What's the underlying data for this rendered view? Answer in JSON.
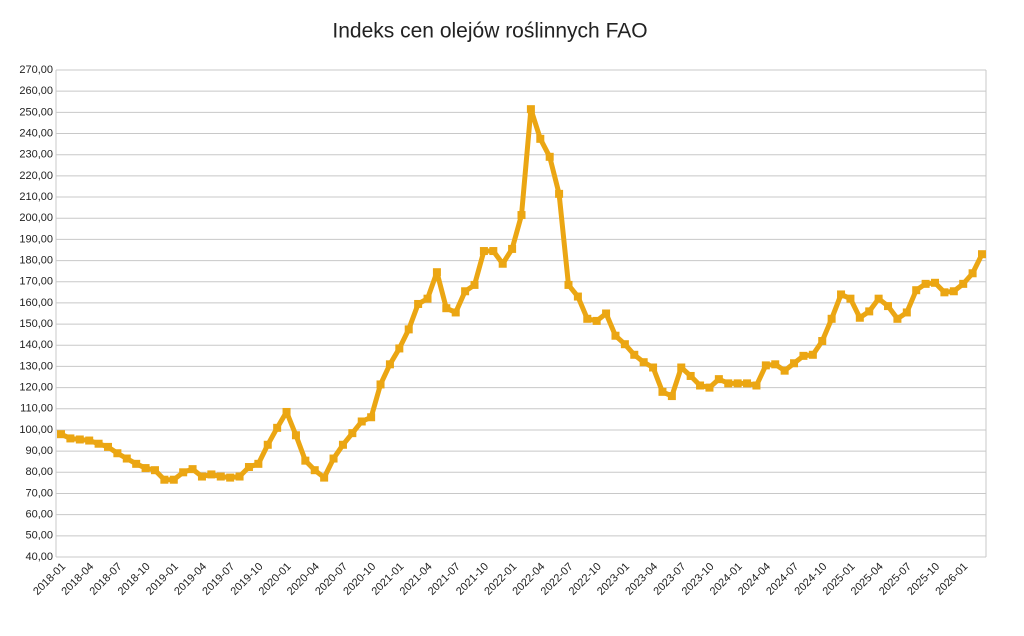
{
  "chart_data": {
    "type": "line",
    "title": "Indeks cen olejów roślinnych FAO",
    "categories": [
      "2018-01",
      null,
      null,
      "2018-04",
      null,
      null,
      "2018-07",
      null,
      null,
      "2018-10",
      null,
      null,
      "2019-01",
      null,
      null,
      "2019-04",
      null,
      null,
      "2019-07",
      null,
      null,
      "2019-10",
      null,
      null,
      "2020-01",
      null,
      null,
      "2020-04",
      null,
      null,
      "2020-07",
      null,
      null,
      "2020-10",
      null,
      null,
      "2021-01",
      null,
      null,
      "2021-04",
      null,
      null,
      "2021-07",
      null,
      null,
      "2021-10",
      null,
      null,
      "2022-01",
      null,
      null,
      "2022-04",
      null,
      null,
      "2022-07",
      null,
      null,
      "2022-10",
      null,
      null,
      "2023-01",
      null,
      null,
      "2023-04",
      null,
      null,
      "2023-07",
      null,
      null,
      "2023-10",
      null,
      null,
      "2024-01",
      null,
      null,
      "2024-04",
      null,
      null,
      "2024-07",
      null,
      null,
      "2024-10",
      null,
      null,
      "2025-01",
      null,
      null,
      "2025-04",
      null,
      null,
      "2025-07",
      null,
      null,
      "2025-10",
      null,
      null,
      "2026-01",
      null,
      null
    ],
    "series": [
      {
        "color": "#eba613",
        "values": [
          98,
          96,
          95.5,
          95,
          93.5,
          92,
          89,
          86.5,
          84,
          82,
          81,
          76.5,
          76.5,
          80,
          81.5,
          78,
          79,
          78,
          77.5,
          78,
          82.5,
          84,
          93,
          101,
          108.5,
          97.5,
          85.5,
          81,
          77.5,
          86.5,
          93,
          98.5,
          104,
          106,
          121.5,
          131,
          138.5,
          147.5,
          159.5,
          162,
          174.5,
          157.5,
          155.5,
          165.5,
          168.5,
          184.5,
          184.5,
          178.5,
          185.5,
          201.5,
          251.5,
          237.5,
          229,
          211.5,
          168.5,
          163,
          152.5,
          151.5,
          155,
          144.5,
          140.5,
          135.5,
          132,
          129.5,
          118,
          116,
          129.5,
          125.5,
          121,
          120,
          124,
          122,
          122,
          122,
          121,
          130.5,
          131,
          128,
          131.5,
          135,
          135.5,
          142,
          152.5,
          164,
          162,
          153,
          156,
          162,
          158.5,
          152.5,
          155.5,
          166,
          169,
          169.5,
          165,
          165.5,
          169,
          174,
          183
        ]
      }
    ],
    "ylim": [
      40,
      270
    ],
    "yticks": [
      {
        "value": 40,
        "label": "40,00"
      },
      {
        "value": 50,
        "label": "50,00"
      },
      {
        "value": 60,
        "label": "60,00"
      },
      {
        "value": 70,
        "label": "70,00"
      },
      {
        "value": 80,
        "label": "80,00"
      },
      {
        "value": 90,
        "label": "90,00"
      },
      {
        "value": 100,
        "label": "100,00"
      },
      {
        "value": 110,
        "label": "110,00"
      },
      {
        "value": 120,
        "label": "120,00"
      },
      {
        "value": 130,
        "label": "130,00"
      },
      {
        "value": 140,
        "label": "140,00"
      },
      {
        "value": 150,
        "label": "150,00"
      },
      {
        "value": 160,
        "label": "160,00"
      },
      {
        "value": 170,
        "label": "170,00"
      },
      {
        "value": 180,
        "label": "180,00"
      },
      {
        "value": 190,
        "label": "190,00"
      },
      {
        "value": 200,
        "label": "200,00"
      },
      {
        "value": 210,
        "label": "210,00"
      },
      {
        "value": 220,
        "label": "220,00"
      },
      {
        "value": 230,
        "label": "230,00"
      },
      {
        "value": 240,
        "label": "240,00"
      },
      {
        "value": 250,
        "label": "250,00"
      },
      {
        "value": 260,
        "label": "260,00"
      },
      {
        "value": 270,
        "label": "270,00"
      }
    ],
    "grid": true
  }
}
